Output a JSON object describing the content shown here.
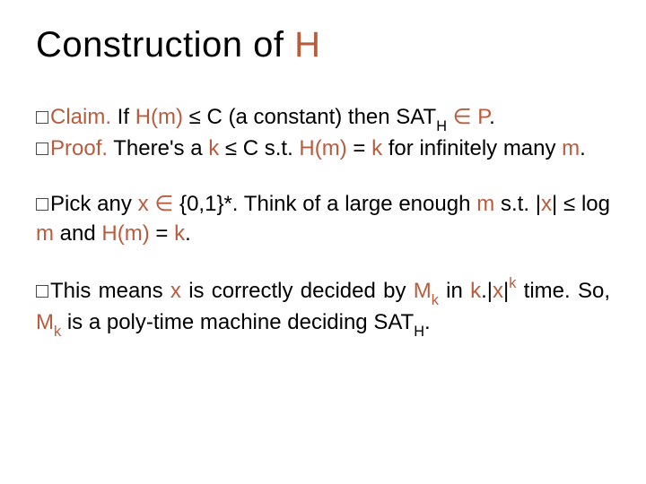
{
  "title": {
    "prefix": "Construction of  ",
    "h": "H",
    "title_color": "#000000",
    "h_color": "#b85c3e",
    "fontsize": 40
  },
  "colors": {
    "accent": "#b85c3e",
    "text": "#000000",
    "background": "#ffffff",
    "bullet_border": "#4a4a4a"
  },
  "typography": {
    "body_fontsize": 24,
    "line_height": 1.35,
    "font_family": "Arial"
  },
  "para1": {
    "claim_label": "Claim.",
    "claim_t1": "  If ",
    "claim_hm": "H(m)",
    "claim_t2": "  ≤  C (a constant) then SAT",
    "claim_sub": "H",
    "claim_t3": " ",
    "claim_in": "∈",
    "claim_t4": " ",
    "claim_p": "P",
    "claim_t5": ".",
    "proof_label": "Proof.",
    "proof_t1": "  There's a ",
    "proof_k": "k",
    "proof_t2": " ≤ C s.t.  ",
    "proof_hm": "H(m)",
    "proof_t3": " = ",
    "proof_k2": "k",
    "proof_t4": " for infinitely many ",
    "proof_m": "m",
    "proof_t5": "."
  },
  "para2": {
    "t1": "Pick any ",
    "x": "x",
    "t2": " ",
    "in": "∈",
    "t3": " {0,1}*.  Think of a large enough ",
    "m": "m",
    "t4": " s.t.      |",
    "x2": "x",
    "t5": "| ≤ log ",
    "m2": "m",
    "t6": " and ",
    "hm": "H(m)",
    "t7": " = ",
    "k": "k",
    "t8": "."
  },
  "para3": {
    "t1": "This means ",
    "x": "x",
    "t2": " is correctly decided by ",
    "mk_m": "M",
    "mk_k": "k",
    "t3": " in ",
    "k2": "k",
    "t4": ".|",
    "x2": "x",
    "t5": "|",
    "sup_k": "k",
    "t6": " time.  So, ",
    "mk2_m": "M",
    "mk2_k": "k",
    "t7": "  is  a  poly-time  machine  deciding SAT",
    "sub_h": "H",
    "t8": "."
  }
}
